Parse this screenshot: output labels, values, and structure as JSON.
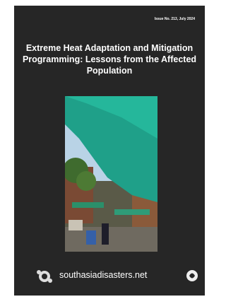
{
  "cover": {
    "issue": "Issue No. 213, July 2024",
    "title": "Extreme Heat Adaptation and Mitigation Programming: Lessons from the Affected Population",
    "website": "southasiadisasters.net"
  }
}
